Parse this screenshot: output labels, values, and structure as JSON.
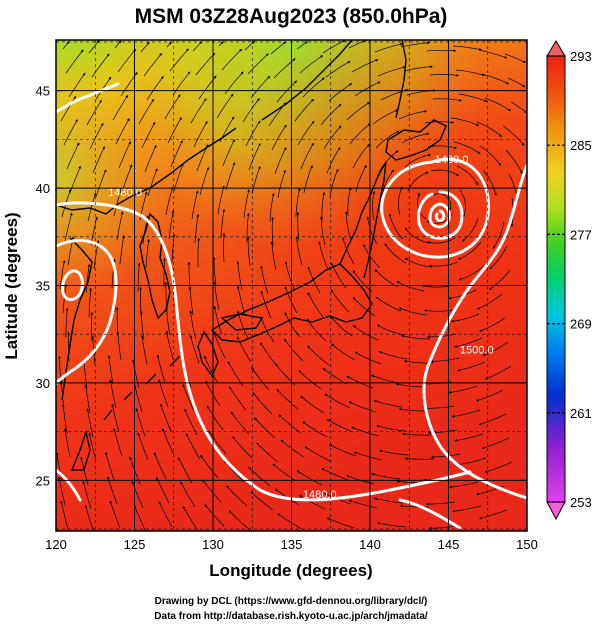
{
  "title": "MSM 03Z28Aug2023 (850.0hPa)",
  "x_axis": {
    "label": "Longitude (degrees)",
    "min": 120,
    "max": 150,
    "ticks": [
      120,
      125,
      130,
      135,
      140,
      145,
      150
    ],
    "tick_labels": [
      "120",
      "125",
      "130",
      "135",
      "140",
      "145",
      "150"
    ]
  },
  "y_axis": {
    "label": "Latitude  (degrees)",
    "min": 22.4,
    "max": 47.6,
    "ticks": [
      25,
      30,
      35,
      40,
      45
    ],
    "tick_labels": [
      "25",
      "30",
      "35",
      "40",
      "45"
    ]
  },
  "grid": true,
  "colorbar": {
    "min": 253,
    "max": 293,
    "ticks": [
      253,
      261,
      269,
      277,
      285,
      293
    ],
    "tick_labels": [
      "253",
      "261",
      "269",
      "277",
      "285",
      "293"
    ],
    "colors": [
      "#e040f0",
      "#9020d0",
      "#0030d0",
      "#0080f0",
      "#00c8e0",
      "#00d070",
      "#40d020",
      "#b0e020",
      "#f0d020",
      "#f09010",
      "#f05010",
      "#f02010"
    ]
  },
  "contours": [
    {
      "label": "1480.0",
      "lon": 145.2,
      "lat": 41.3
    },
    {
      "label": "1480.0",
      "lon": 124.4,
      "lat": 39.6
    },
    {
      "label": "1500.0",
      "lon": 146.8,
      "lat": 31.5
    },
    {
      "label": "1480.0",
      "lon": 136.8,
      "lat": 24.1
    }
  ],
  "low_center": {
    "lon": 144.3,
    "lat": 39.2
  },
  "credits": {
    "line1": "Drawing by DCL (https://www.gfd-dennou.org/library/dcl/)",
    "line2": "Data from http://database.rish.kyoto-u.ac.jp/arch/jmadata/"
  }
}
